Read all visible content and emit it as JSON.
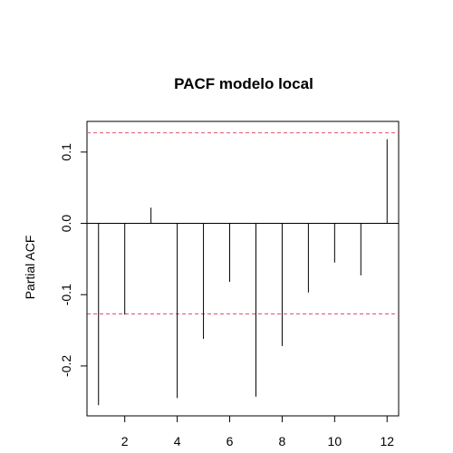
{
  "chart_data": {
    "type": "bar",
    "title": "PACF modelo local",
    "xlabel": "",
    "ylabel": "Partial ACF",
    "x": [
      1,
      2,
      3,
      4,
      5,
      6,
      7,
      8,
      9,
      10,
      11,
      12
    ],
    "values": [
      -0.255,
      -0.128,
      0.022,
      -0.245,
      -0.162,
      -0.082,
      -0.243,
      -0.172,
      -0.097,
      -0.055,
      -0.073,
      0.118
    ],
    "x_ticks": [
      2,
      4,
      6,
      8,
      10,
      12
    ],
    "x_tick_labels": [
      "2",
      "4",
      "6",
      "8",
      "10",
      "12"
    ],
    "y_ticks": [
      -0.2,
      -0.1,
      0.0,
      0.1
    ],
    "y_tick_labels": [
      "-0.2",
      "-0.1",
      "0.0",
      "0.1"
    ],
    "xlim": [
      0.56,
      12.44
    ],
    "ylim": [
      -0.27,
      0.143
    ],
    "confidence_bounds": [
      0.127,
      -0.127
    ],
    "colors": {
      "bars": "#000000",
      "confidence_line": "#df536b",
      "zero_line": "#000000"
    },
    "grid": false,
    "legend": "none"
  }
}
